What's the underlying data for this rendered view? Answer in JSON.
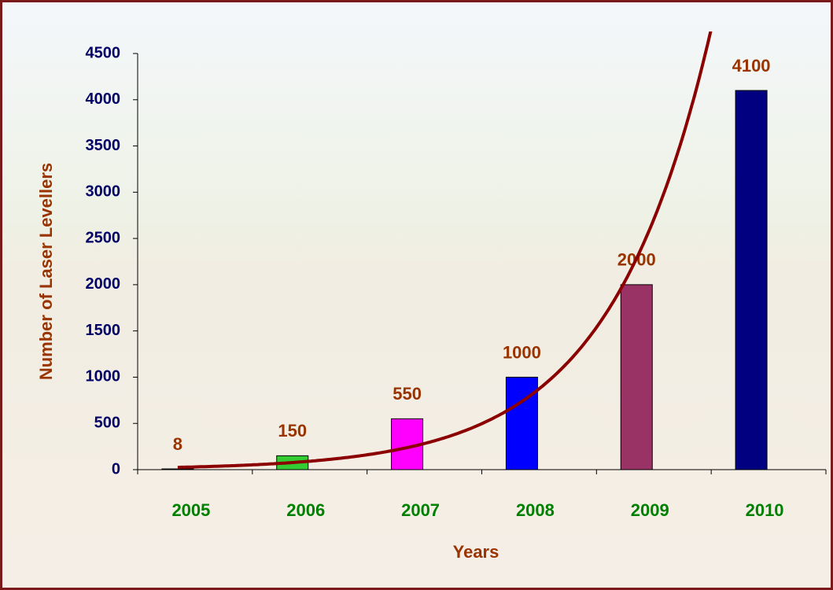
{
  "chart_data": {
    "type": "bar",
    "y_label": "Number of Laser Levellers",
    "x_label": "Years",
    "categories": [
      "2005",
      "2006",
      "2007",
      "2008",
      "2009",
      "2010"
    ],
    "values": [
      8,
      150,
      550,
      1000,
      2000,
      4100
    ],
    "colors": [
      "#333333",
      "#33cc33",
      "#ff00ff",
      "#0000ff",
      "#993366",
      "#000080"
    ],
    "ylim": [
      0,
      4500
    ],
    "yticks": [
      0,
      500,
      1000,
      1500,
      2000,
      2500,
      3000,
      3500,
      4000,
      4500
    ],
    "trendline": "exponential",
    "trendline_color": "#8b0000",
    "grid": false
  }
}
